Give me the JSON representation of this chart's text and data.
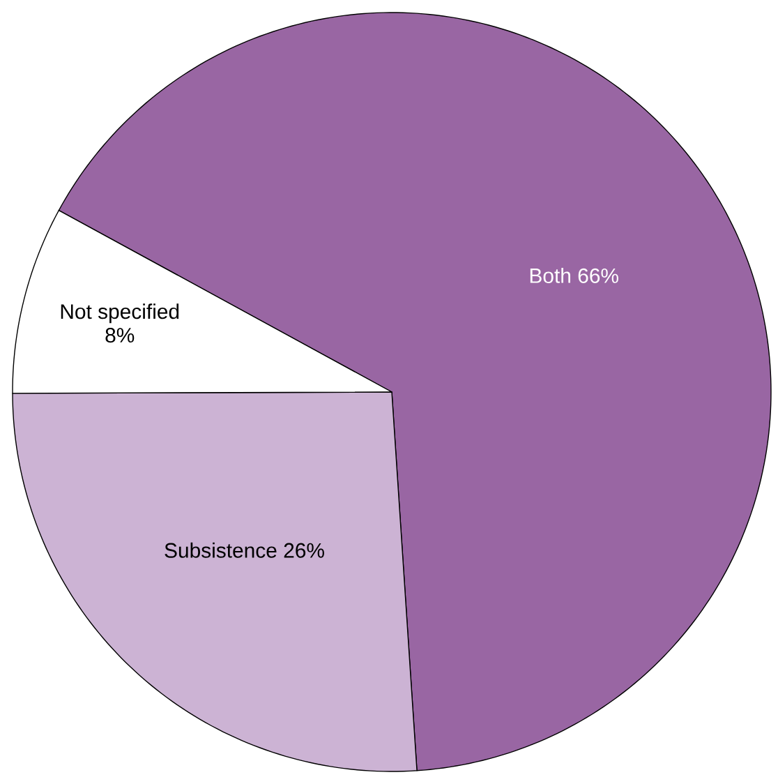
{
  "chart_data": {
    "type": "pie",
    "categories": [
      "Both",
      "Subsistence",
      "Not specified"
    ],
    "values": [
      66,
      26,
      8
    ],
    "value_labels": [
      "66%",
      "26%",
      "8%"
    ],
    "colors": [
      "#9966a3",
      "#ccb3d4",
      "#ffffff"
    ]
  }
}
